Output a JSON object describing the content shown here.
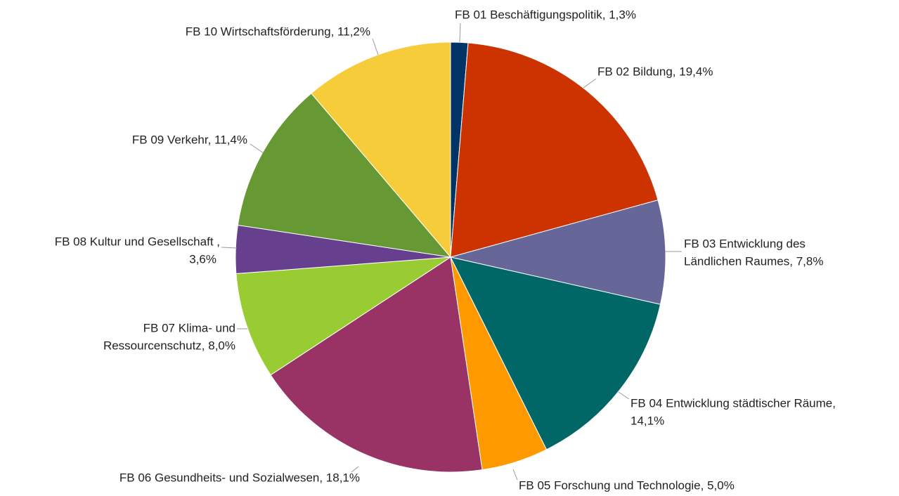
{
  "chart_data": {
    "type": "pie",
    "categories": [
      "FB 01 Beschäftigungspolitik",
      "FB 02 Bildung",
      "FB 03 Entwicklung des Ländlichen Raumes",
      "FB 04 Entwicklung städtischer Räume",
      "FB 05 Forschung und Technologie",
      "FB 06 Gesundheits- und Sozialwesen",
      "FB 07 Klima- und Ressourcenschutz",
      "FB 08 Kultur und Gesellschaft",
      "FB 09 Verkehr",
      "FB 10 Wirtschaftsförderung"
    ],
    "values": [
      1.3,
      19.4,
      7.8,
      14.1,
      5.0,
      18.1,
      8.0,
      3.6,
      11.4,
      11.2
    ],
    "labels": [
      [
        "FB 01 Beschäftigungspolitik, 1,3%"
      ],
      [
        "FB 02 Bildung, 19,4%"
      ],
      [
        "FB 03 Entwicklung des",
        "Ländlichen Raumes, 7,8%"
      ],
      [
        "FB 04 Entwicklung städtischer Räume,",
        "14,1%"
      ],
      [
        "FB 05 Forschung und Technologie, 5,0%"
      ],
      [
        "FB 06 Gesundheits- und Sozialwesen, 18,1%"
      ],
      [
        "FB 07 Klima- und",
        "Ressourcenschutz, 8,0%"
      ],
      [
        "FB 08 Kultur und Gesellschaft ,",
        "3,6%"
      ],
      [
        "FB 09 Verkehr, 11,4%"
      ],
      [
        "FB 10 Wirtschaftsförderung, 11,2%"
      ]
    ],
    "colors": [
      "#003366",
      "#cc3300",
      "#666699",
      "#006666",
      "#ff9900",
      "#993366",
      "#99cc33",
      "#663f8f",
      "#669933",
      "#f7cc3a"
    ]
  }
}
